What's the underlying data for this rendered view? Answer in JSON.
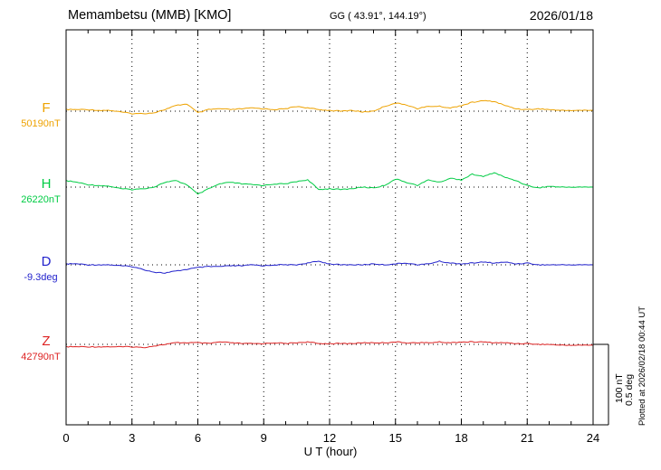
{
  "header": {
    "station": "Memambetsu (MMB)  [KMO]",
    "coords": "GG ( 43.91°, 144.19°)",
    "date": "2026/01/18"
  },
  "side": {
    "plotted_at": "Plotted at 2026/02/18 00:44 UT",
    "scale_label_nt": "100 nT",
    "scale_label_deg": "0.5 deg"
  },
  "chart_data": {
    "type": "line",
    "title": "Memambetsu (MMB) [KMO] magnetogram 2026/01/18",
    "xlabel": "U T (hour)",
    "x_range_hours": [
      0,
      24
    ],
    "x_major_ticks": [
      0,
      3,
      6,
      9,
      12,
      15,
      18,
      21,
      24
    ],
    "sample_interval_hours": 0.5,
    "grid": "vertical-dotted-every-3h, dotted baseline per component",
    "scale_per_division": {
      "field_nT": 100,
      "declination_deg": 0.5
    },
    "series": [
      {
        "name": "F",
        "unit": "nT",
        "base": 50190,
        "base_label": "50190nT",
        "color": "#eea200",
        "offsets": [
          2,
          2,
          2,
          1,
          1,
          -1,
          -3,
          -3,
          -2,
          2,
          7,
          9,
          -2,
          2,
          3,
          2,
          3,
          4,
          3,
          2,
          3,
          6,
          4,
          2,
          1,
          0,
          1,
          -1,
          0,
          6,
          10,
          8,
          3,
          6,
          6,
          4,
          7,
          11,
          13,
          12,
          7,
          3,
          2,
          3,
          2,
          1,
          1,
          1,
          1
        ]
      },
      {
        "name": "H",
        "unit": "nT",
        "base": 26220,
        "base_label": "26220nT",
        "color": "#00cc44",
        "offsets": [
          8,
          6,
          3,
          2,
          1,
          -2,
          -3,
          -2,
          0,
          6,
          8,
          3,
          -9,
          -2,
          4,
          6,
          4,
          3,
          2,
          4,
          4,
          7,
          9,
          -3,
          -2,
          -3,
          -2,
          0,
          -1,
          2,
          10,
          6,
          2,
          9,
          6,
          11,
          9,
          16,
          13,
          18,
          12,
          8,
          2,
          -1,
          1,
          0,
          0,
          0,
          0
        ]
      },
      {
        "name": "D",
        "unit": "deg",
        "base": -9.3,
        "base_label": "-9.3deg",
        "color": "#2222cc",
        "offsets": [
          0.006,
          0.006,
          0,
          0,
          0,
          -0.006,
          -0.011,
          -0.028,
          -0.045,
          -0.051,
          -0.039,
          -0.028,
          -0.017,
          -0.011,
          -0.011,
          -0.006,
          -0.006,
          0,
          -0.006,
          0,
          0,
          0,
          0.011,
          0.022,
          0.006,
          0,
          0,
          0,
          0.006,
          0,
          0.006,
          0.011,
          0,
          0.006,
          0.022,
          0.011,
          0.006,
          0.011,
          0.017,
          0.011,
          0.017,
          0.006,
          0.011,
          0,
          0,
          0,
          0,
          0,
          0
        ]
      },
      {
        "name": "Z",
        "unit": "nT",
        "base": 42790,
        "base_label": "42790nT",
        "color": "#dd2222",
        "offsets": [
          -3,
          -3,
          -3,
          -3,
          -3,
          -3,
          -3,
          -4,
          -2,
          0,
          2,
          2,
          2,
          1,
          3,
          2,
          1,
          1,
          1,
          2,
          1,
          2,
          3,
          1,
          1,
          1,
          1,
          2,
          2,
          2,
          3,
          2,
          2,
          2,
          3,
          2,
          3,
          3,
          3,
          2,
          2,
          1,
          1,
          0,
          0,
          -1,
          -1,
          -1,
          -1
        ]
      }
    ]
  }
}
